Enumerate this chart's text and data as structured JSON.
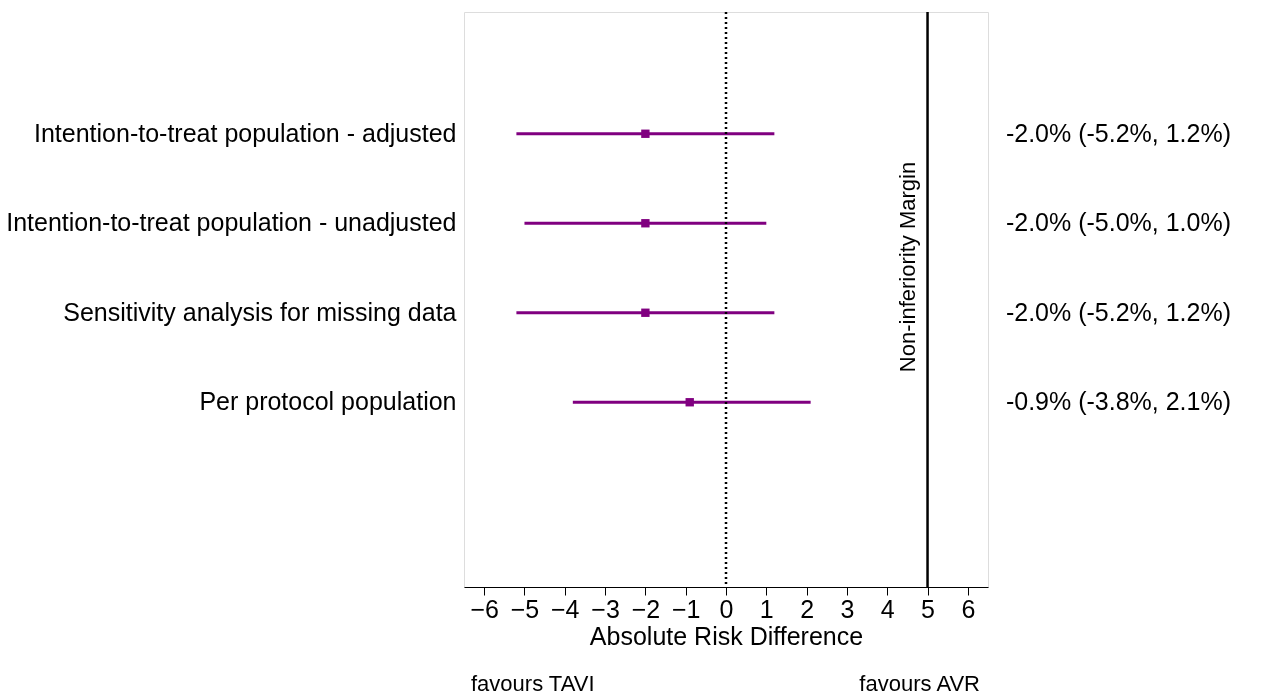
{
  "chart_data": {
    "type": "scatter",
    "orientation": "horizontal",
    "marker": "square",
    "categories": [
      "Intention-to-treat population - adjusted",
      "Intention-to-treat population - unadjusted",
      "Sensitivity analysis for missing data",
      "Per protocol population"
    ],
    "series": [
      {
        "color": "#800080",
        "values": [
          -2.0,
          -2.0,
          -2.0,
          -0.9
        ],
        "errors": [
          [
            -5.2,
            1.2
          ],
          [
            -5.0,
            1.0
          ],
          [
            -5.2,
            1.2
          ],
          [
            -3.8,
            2.1
          ]
        ],
        "value_labels": [
          "-2.0% (-5.2%, 1.2%)",
          "-2.0% (-5.0%, 1.0%)",
          "-2.0% (-5.2%, 1.2%)",
          "-0.9% (-3.8%, 2.1%)"
        ]
      }
    ],
    "xlabel": "Absolute Risk Difference",
    "xlim": [
      -6.5,
      6.5
    ],
    "xticks": [
      -6,
      -5,
      -4,
      -3,
      -2,
      -1,
      0,
      1,
      2,
      3,
      4,
      5,
      6
    ],
    "ref_lines": [
      {
        "axis": "x",
        "value": 0,
        "line_style": "dotted",
        "color": "#000000"
      },
      {
        "axis": "x",
        "value": 5,
        "line_style": "solid",
        "color": "#000000",
        "label": "Non-inferiority Margin"
      }
    ],
    "annotations": [
      "favours TAVI",
      "favours AVR"
    ]
  }
}
